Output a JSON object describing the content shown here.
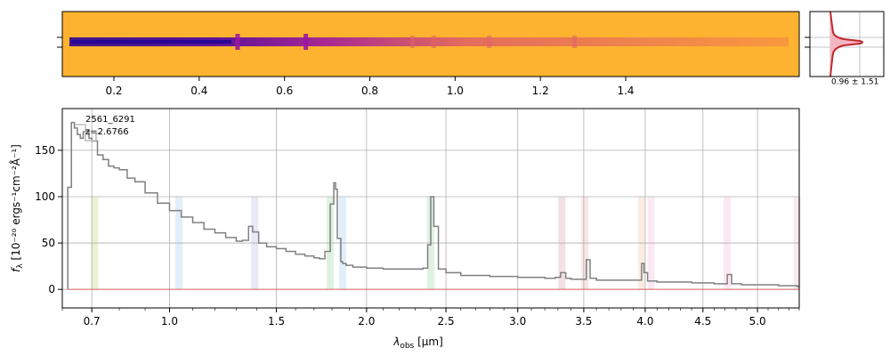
{
  "chart_data": [
    {
      "type": "heatmap",
      "name": "2d-spectrum",
      "colormap": "plasma",
      "background_color": "#fdb32f",
      "trace_color": "#3a049a",
      "x_ticks": [
        {
          "v": 0.2,
          "label": "0.2"
        },
        {
          "v": 0.4,
          "label": "0.4"
        },
        {
          "v": 0.6,
          "label": "0.6"
        },
        {
          "v": 0.8,
          "label": "0.8"
        },
        {
          "v": 1.0,
          "label": "1.0"
        },
        {
          "v": 1.2,
          "label": "1.2"
        },
        {
          "v": 1.4,
          "label": "1.4"
        }
      ],
      "bright_features_x": [
        0.49,
        0.65,
        0.9,
        0.95,
        1.08,
        1.28
      ]
    },
    {
      "type": "line",
      "name": "profile-inset",
      "annotation": "0.96 ± 1.51",
      "profile_color": "#c1272d",
      "fill_color": "#f4b6c2"
    },
    {
      "type": "line",
      "name": "1d-spectrum",
      "object_id": "2561_6291",
      "redshift_label": "z=2.6766",
      "xlabel_main": "λ",
      "xlabel_sub": "obs",
      "xlabel_unit": " [μm]",
      "ylabel_main": "f",
      "ylabel_sub": "λ",
      "ylabel_unit": " [10⁻²⁰ ergs⁻¹cm⁻²Å⁻¹]",
      "x_scale": "sqrt",
      "xlim": [
        0.6,
        5.4
      ],
      "ylim": [
        -20,
        195
      ],
      "grid": true,
      "x_ticks": [
        0.7,
        1.0,
        1.5,
        2.0,
        2.5,
        3.0,
        3.5,
        4.0,
        4.5,
        5.0
      ],
      "y_ticks": [
        0,
        50,
        100,
        150
      ],
      "line_color": "#808080",
      "zero_line_color": "#e06666",
      "x": [
        0.618,
        0.63,
        0.64,
        0.65,
        0.66,
        0.67,
        0.68,
        0.69,
        0.7,
        0.72,
        0.74,
        0.76,
        0.78,
        0.8,
        0.83,
        0.86,
        0.9,
        0.95,
        1.0,
        1.05,
        1.1,
        1.15,
        1.2,
        1.25,
        1.3,
        1.33,
        1.36,
        1.38,
        1.41,
        1.45,
        1.5,
        1.55,
        1.6,
        1.65,
        1.7,
        1.73,
        1.76,
        1.79,
        1.81,
        1.82,
        1.83,
        1.85,
        1.86,
        1.88,
        1.92,
        2.0,
        2.1,
        2.2,
        2.3,
        2.35,
        2.38,
        2.4,
        2.42,
        2.45,
        2.5,
        2.6,
        2.8,
        3.0,
        3.2,
        3.28,
        3.32,
        3.36,
        3.4,
        3.48,
        3.52,
        3.55,
        3.6,
        3.8,
        3.95,
        3.97,
        3.99,
        4.02,
        4.1,
        4.4,
        4.6,
        4.68,
        4.72,
        4.76,
        4.85,
        5.0,
        5.2,
        5.38
      ],
      "y": [
        110,
        180,
        174,
        167,
        163,
        170,
        171,
        163,
        160,
        145,
        140,
        133,
        131,
        129,
        120,
        116,
        104,
        93,
        85,
        78,
        72,
        65,
        61,
        56,
        52,
        53,
        68,
        62,
        50,
        46,
        44,
        41,
        38,
        36,
        34,
        33,
        41,
        92,
        115,
        108,
        55,
        30,
        28,
        26,
        24,
        23,
        22,
        22,
        22,
        23,
        48,
        100,
        68,
        22,
        18,
        15,
        14,
        13,
        12,
        13,
        18,
        12,
        11,
        11,
        32,
        12,
        10,
        10,
        10,
        28,
        18,
        9,
        8,
        7,
        6,
        6,
        16,
        6,
        5,
        5,
        4,
        3
      ]
    }
  ]
}
